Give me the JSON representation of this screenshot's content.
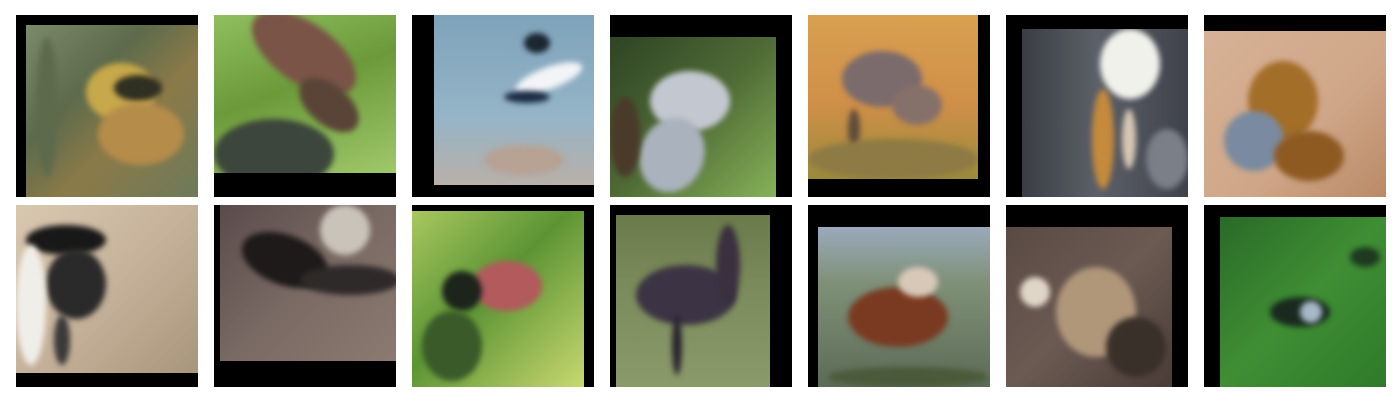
{
  "gallery": {
    "rows": 2,
    "columns": 7,
    "tile_background": "#000000",
    "images": [
      {
        "subject": "bird",
        "palette": [
          "#6e7a5c",
          "#9a8a4a",
          "#d7a53a",
          "#3b3b2a"
        ]
      },
      {
        "subject": "bird",
        "palette": [
          "#74a84a",
          "#8b6552",
          "#3e4a40",
          "#a9cf7a"
        ]
      },
      {
        "subject": "bird",
        "palette": [
          "#8fb0c4",
          "#1b2a3c",
          "#f1f3f6",
          "#b49a8a"
        ]
      },
      {
        "subject": "bird",
        "palette": [
          "#3a5a2a",
          "#b8bfca",
          "#6c7a8a",
          "#7aa54a"
        ]
      },
      {
        "subject": "bird",
        "palette": [
          "#d69a4e",
          "#7a6a6a",
          "#c1864a",
          "#8a7a3a"
        ]
      },
      {
        "subject": "bird",
        "palette": [
          "#3d4048",
          "#f0f0ea",
          "#c48a3a",
          "#6f7078"
        ]
      },
      {
        "subject": "bird",
        "palette": [
          "#d5ad8e",
          "#a06e2a",
          "#7d8aa0",
          "#c7926a"
        ]
      },
      {
        "subject": "bird",
        "palette": [
          "#cbb8a0",
          "#202020",
          "#f2f0ea",
          "#8a7a62"
        ]
      },
      {
        "subject": "bird",
        "palette": [
          "#6a5a5a",
          "#2b2828",
          "#c7c1b8",
          "#8a7a70"
        ]
      },
      {
        "subject": "bird",
        "palette": [
          "#6aa03a",
          "#b05a5a",
          "#c8d86a",
          "#2a3a2a"
        ]
      },
      {
        "subject": "bird",
        "palette": [
          "#6a8a4a",
          "#3a3040",
          "#9a9a8a",
          "#4a6a3a"
        ]
      },
      {
        "subject": "bird",
        "palette": [
          "#8d9c84",
          "#7a3a20",
          "#c0b0a0",
          "#4a5a4a"
        ]
      },
      {
        "subject": "bird",
        "palette": [
          "#5a4a44",
          "#a88d70",
          "#e0d6c8",
          "#3a302a"
        ]
      },
      {
        "subject": "bird",
        "palette": [
          "#2e7a2a",
          "#1a2a20",
          "#a0b0c0",
          "#4aa040"
        ]
      }
    ]
  }
}
